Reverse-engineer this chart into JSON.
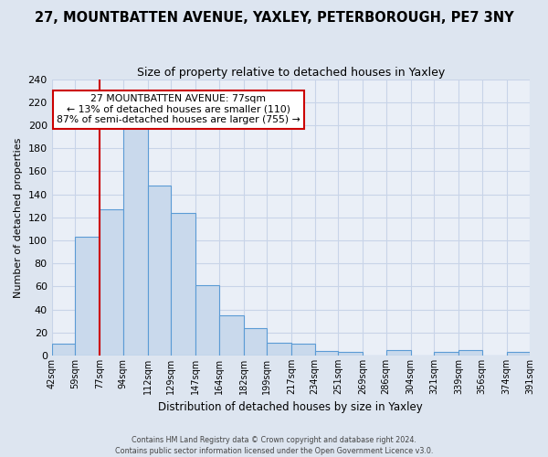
{
  "title": "27, MOUNTBATTEN AVENUE, YAXLEY, PETERBOROUGH, PE7 3NY",
  "subtitle": "Size of property relative to detached houses in Yaxley",
  "xlabel": "Distribution of detached houses by size in Yaxley",
  "ylabel": "Number of detached properties",
  "bin_edges": [
    42,
    59,
    77,
    94,
    112,
    129,
    147,
    164,
    182,
    199,
    217,
    234,
    251,
    269,
    286,
    304,
    321,
    339,
    356,
    374,
    391
  ],
  "bin_labels": [
    "42sqm",
    "59sqm",
    "77sqm",
    "94sqm",
    "112sqm",
    "129sqm",
    "147sqm",
    "164sqm",
    "182sqm",
    "199sqm",
    "217sqm",
    "234sqm",
    "251sqm",
    "269sqm",
    "286sqm",
    "304sqm",
    "321sqm",
    "339sqm",
    "356sqm",
    "374sqm",
    "391sqm"
  ],
  "counts": [
    10,
    103,
    127,
    199,
    148,
    124,
    61,
    35,
    24,
    11,
    10,
    4,
    3,
    0,
    5,
    0,
    3,
    5,
    0,
    3
  ],
  "bar_facecolor": "#c9d9ec",
  "bar_edgecolor": "#5b9bd5",
  "vline_x": 77,
  "vline_color": "#cc0000",
  "ylim": [
    0,
    240
  ],
  "yticks": [
    0,
    20,
    40,
    60,
    80,
    100,
    120,
    140,
    160,
    180,
    200,
    220,
    240
  ],
  "annotation_box_text": "27 MOUNTBATTEN AVENUE: 77sqm\n← 13% of detached houses are smaller (110)\n87% of semi-detached houses are larger (755) →",
  "annotation_box_edgecolor": "#cc0000",
  "footer_text": "Contains HM Land Registry data © Crown copyright and database right 2024.\nContains public sector information licensed under the Open Government Licence v3.0.",
  "background_color": "#dde5f0",
  "plot_background_color": "#eaeff7",
  "grid_color": "#c8d4e8",
  "title_fontsize": 10.5,
  "subtitle_fontsize": 9,
  "xlabel_fontsize": 8.5,
  "ylabel_fontsize": 8,
  "xtick_fontsize": 7,
  "ytick_fontsize": 8,
  "annot_fontsize": 7.8,
  "footer_fontsize": 5.8
}
